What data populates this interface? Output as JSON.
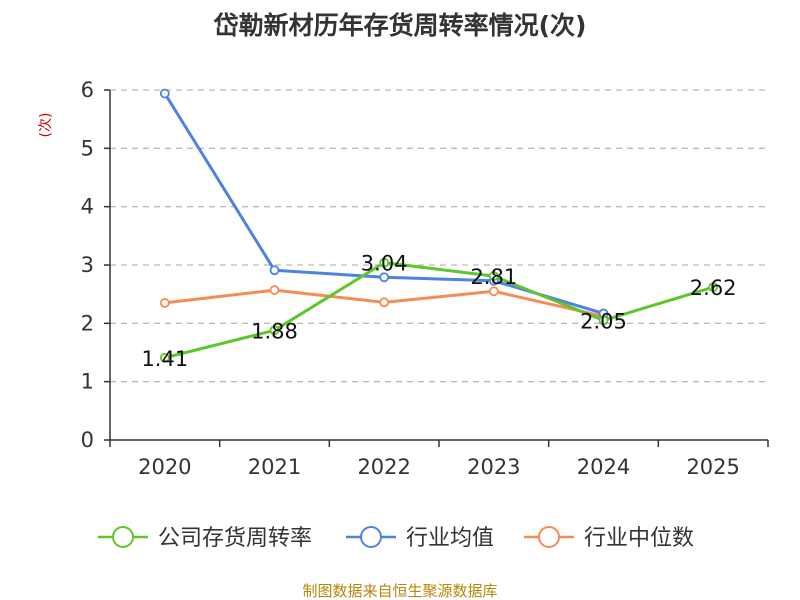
{
  "chart_data": {
    "type": "line",
    "title": "岱勒新材历年存货周转率情况(次)",
    "ylabel": "(次)",
    "categories": [
      "2020",
      "2021",
      "2022",
      "2023",
      "2024",
      "2025"
    ],
    "ylim": [
      0,
      6
    ],
    "yticks": [
      0,
      1,
      2,
      3,
      4,
      5,
      6
    ],
    "grid": true,
    "legend_position": "bottom",
    "series": [
      {
        "name": "公司存货周转率",
        "color": "#5cc62a",
        "values": [
          1.41,
          1.88,
          3.04,
          2.81,
          2.05,
          2.62
        ],
        "show_labels": true
      },
      {
        "name": "行业均值",
        "color": "#4f81e0",
        "values": [
          5.94,
          2.91,
          2.79,
          2.73,
          2.17,
          null
        ],
        "show_labels": false
      },
      {
        "name": "行业中位数",
        "color": "#f58c56",
        "values": [
          2.35,
          2.57,
          2.36,
          2.55,
          2.12,
          null
        ],
        "show_labels": false
      }
    ]
  },
  "footer": {
    "source": "制图数据来自恒生聚源数据库"
  }
}
